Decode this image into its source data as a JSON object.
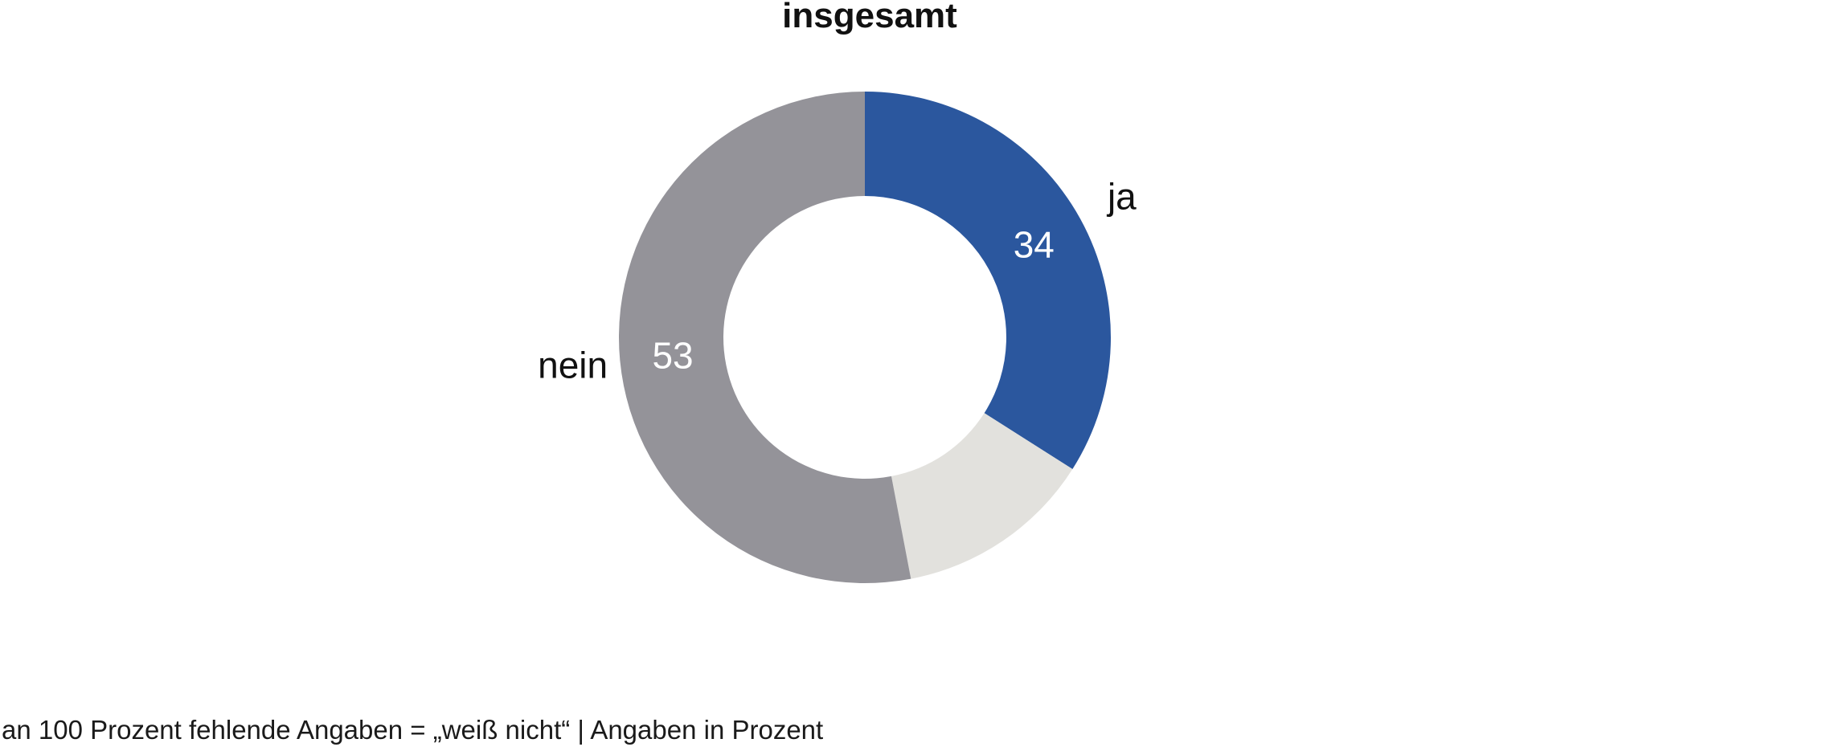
{
  "chart_data": {
    "type": "pie",
    "subtype": "donut",
    "title": "insgesamt",
    "unit": "Prozent",
    "direction": "clockwise",
    "start_angle_deg": 0,
    "legend_position": "none",
    "segments": [
      {
        "label": "ja",
        "value": 34,
        "color": "#2b579e",
        "show_value": true,
        "value_color": "#ffffff",
        "outer_label": "ja"
      },
      {
        "label": "weiß nicht",
        "value": 13,
        "color": "#e2e1dd",
        "show_value": false,
        "value_color": "#ffffff",
        "outer_label": ""
      },
      {
        "label": "nein",
        "value": 53,
        "color": "#949399",
        "show_value": true,
        "value_color": "#ffffff",
        "outer_label": "nein"
      }
    ],
    "footnote": "an 100 Prozent fehlende Angaben = „weiß nicht“ | Angaben in Prozent"
  },
  "colors": {
    "background": "#ffffff",
    "title_text": "#111111",
    "footnote_text": "#1a1a1a",
    "segment_ja": "#2b579e",
    "segment_weiss_nicht": "#e2e1dd",
    "segment_nein": "#949399"
  }
}
